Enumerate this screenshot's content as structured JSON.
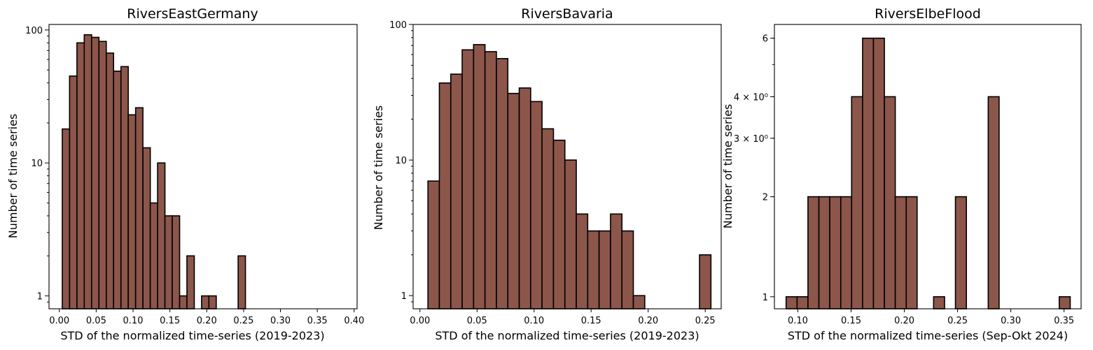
{
  "chart_data": [
    {
      "type": "bar",
      "title": "RiversEastGermany",
      "xlabel": "STD of the normalized time-series (2019-2023)",
      "ylabel": "Number of time series",
      "yscale": "log",
      "xlim": [
        -0.014,
        0.404
      ],
      "ylim": [
        0.8,
        110
      ],
      "xticks": [
        0.0,
        0.05,
        0.1,
        0.15,
        0.2,
        0.25,
        0.3,
        0.35,
        0.4
      ],
      "xtick_labels": [
        "0.00",
        "0.05",
        "0.10",
        "0.15",
        "0.20",
        "0.25",
        "0.30",
        "0.35",
        "0.40"
      ],
      "yticks": [
        1,
        10,
        100
      ],
      "ytick_labels": [
        "1",
        "10",
        "100"
      ],
      "bins": [
        {
          "x0": 0.004,
          "x1": 0.0139,
          "count": 18
        },
        {
          "x0": 0.0139,
          "x1": 0.0239,
          "count": 45
        },
        {
          "x0": 0.0239,
          "x1": 0.0338,
          "count": 80
        },
        {
          "x0": 0.0338,
          "x1": 0.0438,
          "count": 92
        },
        {
          "x0": 0.0438,
          "x1": 0.0537,
          "count": 88
        },
        {
          "x0": 0.0537,
          "x1": 0.0637,
          "count": 82
        },
        {
          "x0": 0.0637,
          "x1": 0.0736,
          "count": 67
        },
        {
          "x0": 0.0736,
          "x1": 0.0836,
          "count": 49
        },
        {
          "x0": 0.0836,
          "x1": 0.0935,
          "count": 53
        },
        {
          "x0": 0.0935,
          "x1": 0.1035,
          "count": 23
        },
        {
          "x0": 0.1035,
          "x1": 0.1134,
          "count": 26
        },
        {
          "x0": 0.1134,
          "x1": 0.1234,
          "count": 13
        },
        {
          "x0": 0.1234,
          "x1": 0.1333,
          "count": 5
        },
        {
          "x0": 0.1333,
          "x1": 0.1433,
          "count": 10
        },
        {
          "x0": 0.1433,
          "x1": 0.1532,
          "count": 4
        },
        {
          "x0": 0.1532,
          "x1": 0.1632,
          "count": 4
        },
        {
          "x0": 0.1632,
          "x1": 0.1731,
          "count": 1
        },
        {
          "x0": 0.1731,
          "x1": 0.1831,
          "count": 2
        },
        {
          "x0": 0.193,
          "x1": 0.2029,
          "count": 1
        },
        {
          "x0": 0.2029,
          "x1": 0.2129,
          "count": 1
        },
        {
          "x0": 0.2426,
          "x1": 0.2525,
          "count": 2
        }
      ]
    },
    {
      "type": "bar",
      "title": "RiversBavaria",
      "xlabel": "STD of the normalized time-series (2019-2023)",
      "ylabel": "Number of time series",
      "yscale": "log",
      "xlim": [
        -0.006,
        0.264
      ],
      "ylim": [
        0.8,
        100
      ],
      "xticks": [
        0.0,
        0.05,
        0.1,
        0.15,
        0.2,
        0.25
      ],
      "xtick_labels": [
        "0.00",
        "0.05",
        "0.10",
        "0.15",
        "0.20",
        "0.25"
      ],
      "yticks": [
        1,
        10,
        100
      ],
      "ytick_labels": [
        "1",
        "10",
        "100"
      ],
      "bins": [
        {
          "x0": 0.007,
          "x1": 0.017,
          "count": 7
        },
        {
          "x0": 0.017,
          "x1": 0.027,
          "count": 37
        },
        {
          "x0": 0.027,
          "x1": 0.037,
          "count": 43
        },
        {
          "x0": 0.037,
          "x1": 0.047,
          "count": 65
        },
        {
          "x0": 0.047,
          "x1": 0.057,
          "count": 71
        },
        {
          "x0": 0.057,
          "x1": 0.067,
          "count": 63
        },
        {
          "x0": 0.067,
          "x1": 0.077,
          "count": 56
        },
        {
          "x0": 0.077,
          "x1": 0.087,
          "count": 31
        },
        {
          "x0": 0.087,
          "x1": 0.097,
          "count": 34
        },
        {
          "x0": 0.097,
          "x1": 0.107,
          "count": 27
        },
        {
          "x0": 0.107,
          "x1": 0.117,
          "count": 17
        },
        {
          "x0": 0.117,
          "x1": 0.127,
          "count": 14
        },
        {
          "x0": 0.127,
          "x1": 0.137,
          "count": 10
        },
        {
          "x0": 0.137,
          "x1": 0.147,
          "count": 4
        },
        {
          "x0": 0.147,
          "x1": 0.157,
          "count": 3
        },
        {
          "x0": 0.157,
          "x1": 0.167,
          "count": 3
        },
        {
          "x0": 0.167,
          "x1": 0.177,
          "count": 4
        },
        {
          "x0": 0.177,
          "x1": 0.187,
          "count": 3
        },
        {
          "x0": 0.187,
          "x1": 0.197,
          "count": 1
        },
        {
          "x0": 0.245,
          "x1": 0.255,
          "count": 2
        }
      ]
    },
    {
      "type": "bar",
      "title": "RiversElbeFlood",
      "xlabel": "STD of the normalized time-series (Sep-Okt 2024)",
      "ylabel": "Number of time series",
      "yscale": "log",
      "xlim": [
        0.078,
        0.366
      ],
      "ylim": [
        0.92,
        6.6
      ],
      "xticks": [
        0.1,
        0.15,
        0.2,
        0.25,
        0.3,
        0.35
      ],
      "xtick_labels": [
        "0.10",
        "0.15",
        "0.20",
        "0.25",
        "0.30",
        "0.35"
      ],
      "yticks": [
        1,
        2,
        3,
        4,
        6
      ],
      "ytick_labels": [
        "1",
        "2",
        "3 × 10⁰",
        "4 × 10⁰",
        "6"
      ],
      "bins": [
        {
          "x0": 0.089,
          "x1": 0.0993,
          "count": 1
        },
        {
          "x0": 0.0993,
          "x1": 0.1095,
          "count": 1
        },
        {
          "x0": 0.1095,
          "x1": 0.1198,
          "count": 2
        },
        {
          "x0": 0.1198,
          "x1": 0.13,
          "count": 2
        },
        {
          "x0": 0.13,
          "x1": 0.1403,
          "count": 2
        },
        {
          "x0": 0.1403,
          "x1": 0.1505,
          "count": 2
        },
        {
          "x0": 0.1505,
          "x1": 0.1608,
          "count": 4
        },
        {
          "x0": 0.1608,
          "x1": 0.171,
          "count": 6
        },
        {
          "x0": 0.171,
          "x1": 0.1813,
          "count": 6
        },
        {
          "x0": 0.1813,
          "x1": 0.1915,
          "count": 4
        },
        {
          "x0": 0.1915,
          "x1": 0.2018,
          "count": 2
        },
        {
          "x0": 0.2018,
          "x1": 0.212,
          "count": 2
        },
        {
          "x0": 0.2275,
          "x1": 0.2378,
          "count": 1
        },
        {
          "x0": 0.248,
          "x1": 0.2583,
          "count": 2
        },
        {
          "x0": 0.2788,
          "x1": 0.289,
          "count": 4
        },
        {
          "x0": 0.3455,
          "x1": 0.3558,
          "count": 1
        }
      ]
    }
  ],
  "colors": {
    "bar_fill": "#8c564b",
    "bar_edge": "#000000"
  }
}
